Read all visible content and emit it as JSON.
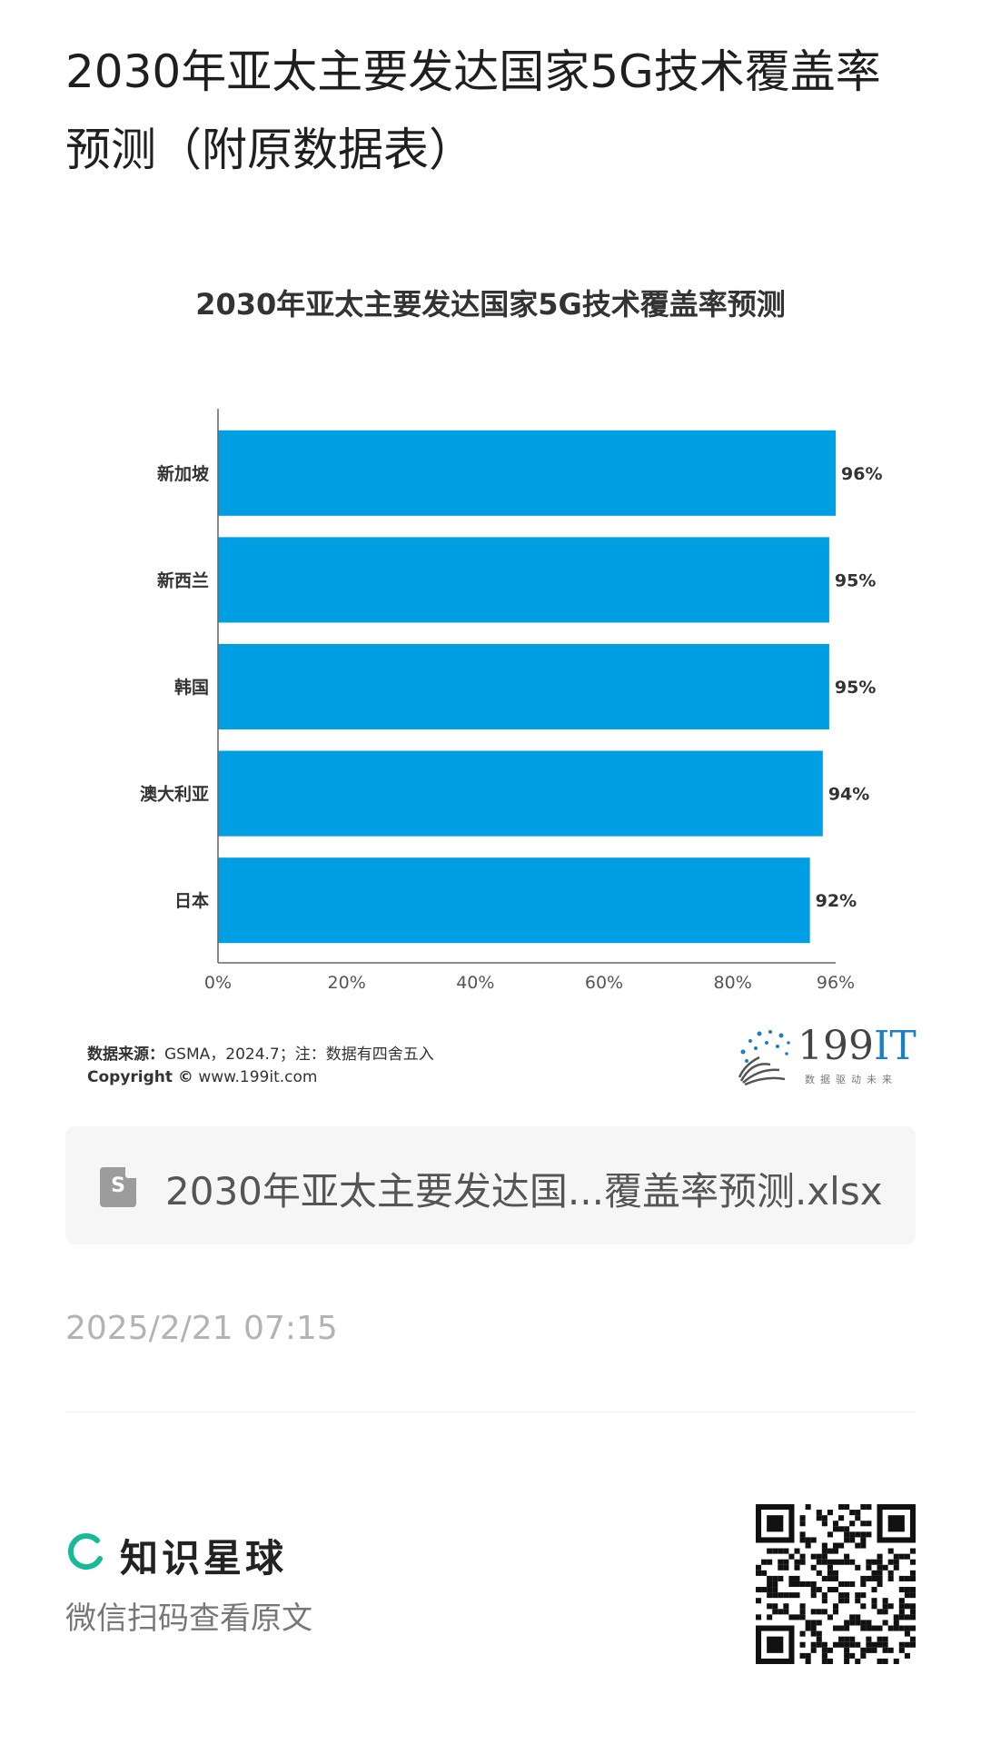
{
  "page": {
    "title": "2030年亚太主要发达国家5G技术覆盖率预测（附原数据表）",
    "timestamp": "2025/2/21 07:15"
  },
  "chart_data": {
    "type": "bar",
    "orientation": "horizontal",
    "title": "2030年亚太主要发达国家5G技术覆盖率预测",
    "categories": [
      "新加坡",
      "新西兰",
      "韩国",
      "澳大利亚",
      "日本"
    ],
    "values": [
      96,
      95,
      95,
      94,
      92
    ],
    "value_labels": [
      "96%",
      "95%",
      "95%",
      "94%",
      "92%"
    ],
    "x_ticks": [
      "0%",
      "20%",
      "40%",
      "60%",
      "80%",
      "96%"
    ],
    "x_tick_values": [
      0,
      20,
      40,
      60,
      80,
      96
    ],
    "xlim": [
      0,
      96
    ],
    "grid": false,
    "bar_color": "#009fe3"
  },
  "source": {
    "label": "数据来源：",
    "text": "GSMA，2024.7；注：数据有四舍五入",
    "copyright_label": "Copyright ©",
    "copyright_text": "www.199it.com"
  },
  "logo": {
    "num": "199",
    "it": "IT",
    "tagline": "数据驱动未来",
    "accent": "#1a7fc4"
  },
  "file": {
    "icon_letter": "S",
    "name": "2030年亚太主要发达国...覆盖率预测.xlsx"
  },
  "footer": {
    "brand_name": "知识星球",
    "brand_color": "#16b998",
    "scan_hint": "微信扫码查看原文"
  }
}
